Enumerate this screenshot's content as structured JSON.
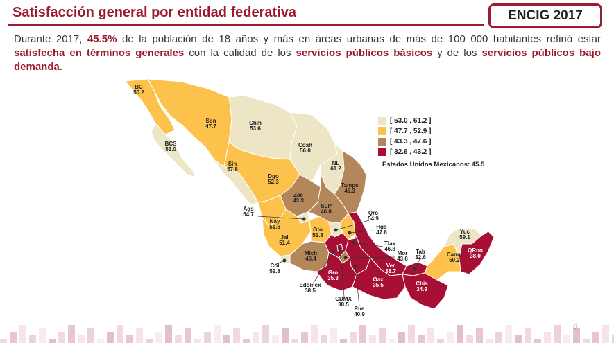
{
  "header": {
    "title": "Satisfacción general por entidad federativa",
    "badge": "ENCIG 2017"
  },
  "intro": {
    "p1": "Durante 2017, ",
    "h1": "45.5%",
    "p2": " de la población de 18 años y más en áreas urbanas de más de 100 000 habitantes refirió estar ",
    "h2": "satisfecha en términos generales",
    "p3": " con la calidad de los ",
    "h3": "servicios públicos básicos",
    "p4": " y de los ",
    "h4": "servicios públicos bajo demanda",
    "p5": "."
  },
  "colors": {
    "cat1": "#ece5c6",
    "cat2": "#fdc24c",
    "cat3": "#b3875a",
    "cat4": "#a80f35",
    "accent": "#9c1b2e"
  },
  "legend": [
    {
      "range": "[ 53.0 , 61.2 ]",
      "category": "cat1"
    },
    {
      "range": "[ 47.7 , 52.9 ]",
      "category": "cat2"
    },
    {
      "range": "[ 43.3 , 47.6 ]",
      "category": "cat3"
    },
    {
      "range": "[ 32.6 , 43.2 ]",
      "category": "cat4"
    }
  ],
  "national": "Estados Unidos Mexicanos:  45.5",
  "states": {
    "bc": {
      "name": "BC",
      "value": "50.2",
      "category": "cat2"
    },
    "son": {
      "name": "Son",
      "value": "47.7",
      "category": "cat2"
    },
    "chih": {
      "name": "Chih",
      "value": "53.6",
      "category": "cat1"
    },
    "coah": {
      "name": "Coah",
      "value": "56.0",
      "category": "cat1"
    },
    "nl": {
      "name": "NL",
      "value": "61.2",
      "category": "cat1"
    },
    "bcs": {
      "name": "BCS",
      "value": "53.0",
      "category": "cat1"
    },
    "sin": {
      "name": "Sin",
      "value": "57.8",
      "category": "cat1"
    },
    "dgo": {
      "name": "Dgo",
      "value": "52.3",
      "category": "cat2"
    },
    "tamps": {
      "name": "Tamps",
      "value": "45.3",
      "category": "cat3"
    },
    "zac": {
      "name": "Zac",
      "value": "43.3",
      "category": "cat3"
    },
    "slp": {
      "name": "SLP",
      "value": "46.0",
      "category": "cat3"
    },
    "ags": {
      "name": "Ags",
      "value": "54.7",
      "category": "cat1"
    },
    "nay": {
      "name": "Nay",
      "value": "51.6",
      "category": "cat2"
    },
    "jal": {
      "name": "Jal",
      "value": "51.4",
      "category": "cat2"
    },
    "gto": {
      "name": "Gto",
      "value": "51.8",
      "category": "cat2"
    },
    "qro": {
      "name": "Qro",
      "value": "54.9",
      "category": "cat1"
    },
    "hgo": {
      "name": "Hgo",
      "value": "47.8",
      "category": "cat2"
    },
    "tlax": {
      "name": "Tlax",
      "value": "46.8",
      "category": "cat3"
    },
    "mor": {
      "name": "Mor",
      "value": "43.6",
      "category": "cat3"
    },
    "mich": {
      "name": "Mich",
      "value": "46.4",
      "category": "cat3"
    },
    "col": {
      "name": "Col",
      "value": "59.8",
      "category": "cat1"
    },
    "edomex": {
      "name": "Edomex",
      "value": "38.5",
      "category": "cat4"
    },
    "gro": {
      "name": "Gro",
      "value": "35.3",
      "category": "cat4"
    },
    "cdmx": {
      "name": "CDMX",
      "value": "38.5",
      "category": "cat4"
    },
    "pue": {
      "name": "Pue",
      "value": "40.9",
      "category": "cat4"
    },
    "ver": {
      "name": "Ver",
      "value": "38.7",
      "category": "cat4"
    },
    "oax": {
      "name": "Oax",
      "value": "35.5",
      "category": "cat4"
    },
    "tab": {
      "name": "Tab",
      "value": "32.6",
      "category": "cat4"
    },
    "chis": {
      "name": "Chis",
      "value": "34.9",
      "category": "cat4"
    },
    "camp": {
      "name": "Camp",
      "value": "50.2",
      "category": "cat2"
    },
    "yuc": {
      "name": "Yuc",
      "value": "59.1",
      "category": "cat1"
    },
    "qroo": {
      "name": "QRoo",
      "value": "38.0",
      "category": "cat4"
    }
  },
  "page_number": "6"
}
